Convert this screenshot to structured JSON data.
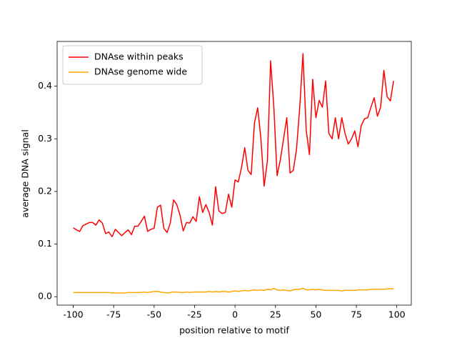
{
  "chart_data": {
    "type": "line",
    "xlabel": "position relative to motif",
    "ylabel": "average DNA signal",
    "x": [
      -100,
      -98,
      -96,
      -94,
      -92,
      -90,
      -88,
      -86,
      -84,
      -82,
      -80,
      -78,
      -76,
      -74,
      -72,
      -70,
      -68,
      -66,
      -64,
      -62,
      -60,
      -58,
      -56,
      -54,
      -52,
      -50,
      -48,
      -46,
      -44,
      -42,
      -40,
      -38,
      -36,
      -34,
      -32,
      -30,
      -28,
      -26,
      -24,
      -22,
      -20,
      -18,
      -16,
      -14,
      -12,
      -10,
      -8,
      -6,
      -4,
      -2,
      0,
      2,
      4,
      6,
      8,
      10,
      12,
      14,
      16,
      18,
      20,
      22,
      24,
      26,
      28,
      30,
      32,
      34,
      36,
      38,
      40,
      42,
      44,
      46,
      48,
      50,
      52,
      54,
      56,
      58,
      60,
      62,
      64,
      66,
      68,
      70,
      72,
      74,
      76,
      78,
      80,
      82,
      84,
      86,
      88,
      90,
      92,
      94,
      96,
      98
    ],
    "series": [
      {
        "name": "DNAse within peaks",
        "color": "#ff0000",
        "values": [
          0.131,
          0.127,
          0.124,
          0.135,
          0.138,
          0.141,
          0.141,
          0.136,
          0.146,
          0.14,
          0.12,
          0.123,
          0.114,
          0.128,
          0.122,
          0.116,
          0.122,
          0.127,
          0.118,
          0.134,
          0.134,
          0.143,
          0.153,
          0.124,
          0.128,
          0.13,
          0.17,
          0.174,
          0.13,
          0.122,
          0.14,
          0.184,
          0.175,
          0.155,
          0.125,
          0.141,
          0.14,
          0.152,
          0.143,
          0.19,
          0.16,
          0.175,
          0.16,
          0.136,
          0.209,
          0.163,
          0.158,
          0.16,
          0.195,
          0.17,
          0.222,
          0.218,
          0.245,
          0.283,
          0.24,
          0.232,
          0.33,
          0.359,
          0.3,
          0.21,
          0.258,
          0.448,
          0.36,
          0.23,
          0.26,
          0.3,
          0.34,
          0.235,
          0.24,
          0.28,
          0.36,
          0.462,
          0.316,
          0.27,
          0.413,
          0.34,
          0.373,
          0.36,
          0.41,
          0.31,
          0.3,
          0.34,
          0.3,
          0.34,
          0.31,
          0.29,
          0.3,
          0.315,
          0.285,
          0.325,
          0.338,
          0.34,
          0.36,
          0.378,
          0.343,
          0.36,
          0.43,
          0.38,
          0.372,
          0.41
        ]
      },
      {
        "name": "DNAse genome wide",
        "color": "#ffa500",
        "values": [
          0.008,
          0.008,
          0.008,
          0.008,
          0.008,
          0.008,
          0.008,
          0.008,
          0.008,
          0.008,
          0.008,
          0.008,
          0.007,
          0.007,
          0.007,
          0.007,
          0.007,
          0.008,
          0.008,
          0.008,
          0.008,
          0.008,
          0.009,
          0.008,
          0.009,
          0.01,
          0.01,
          0.009,
          0.008,
          0.007,
          0.008,
          0.009,
          0.009,
          0.008,
          0.008,
          0.009,
          0.008,
          0.009,
          0.009,
          0.009,
          0.009,
          0.009,
          0.01,
          0.009,
          0.01,
          0.009,
          0.01,
          0.01,
          0.009,
          0.01,
          0.011,
          0.01,
          0.011,
          0.012,
          0.011,
          0.012,
          0.013,
          0.012,
          0.013,
          0.012,
          0.014,
          0.013,
          0.016,
          0.013,
          0.012,
          0.013,
          0.012,
          0.011,
          0.013,
          0.014,
          0.014,
          0.016,
          0.013,
          0.013,
          0.014,
          0.013,
          0.014,
          0.013,
          0.012,
          0.012,
          0.012,
          0.012,
          0.012,
          0.011,
          0.012,
          0.012,
          0.012,
          0.012,
          0.013,
          0.013,
          0.013,
          0.013,
          0.014,
          0.014,
          0.014,
          0.014,
          0.014,
          0.015,
          0.015,
          0.015
        ]
      }
    ],
    "xlim": [
      -109.95,
      108.95
    ],
    "xticks": [
      -100,
      -75,
      -50,
      -25,
      0,
      25,
      50,
      75,
      100
    ],
    "ylim": [
      -0.016,
      0.485
    ],
    "yticks": [
      {
        "value": 0,
        "label": "0.0"
      },
      0.1,
      0.2,
      0.3,
      0.4
    ],
    "legend": "upper left"
  }
}
